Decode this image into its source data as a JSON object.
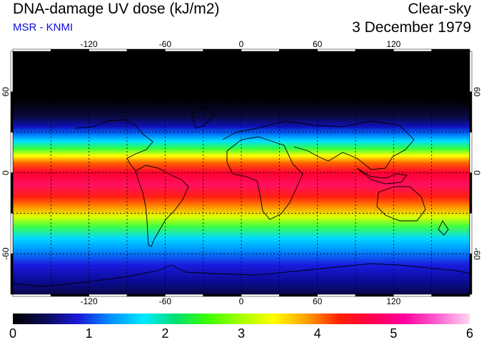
{
  "header": {
    "title": "DNA-damage UV dose (kJ/m2)",
    "subtitle": "MSR - KNMI",
    "condition": "Clear-sky",
    "date": "3 December 1979"
  },
  "map": {
    "lon_ticks": [
      "-120",
      "-60",
      "0",
      "60",
      "120"
    ],
    "lat_ticks_left": [
      "60",
      "0",
      "-60"
    ],
    "lat_ticks_right": [
      "60",
      "0",
      "-60"
    ],
    "lon_range": [
      -180,
      180
    ],
    "lat_range": [
      -90,
      90
    ],
    "grid_lons": [
      -150,
      -120,
      -90,
      -60,
      -30,
      0,
      30,
      60,
      90,
      120,
      150
    ],
    "grid_lats": [
      60,
      30,
      0,
      -30,
      -60
    ]
  },
  "colorbar": {
    "labels": [
      "0",
      "1",
      "2",
      "3",
      "4",
      "5",
      "6"
    ],
    "min": 0,
    "max": 6
  },
  "colors": {
    "scale": [
      "#000000",
      "#0a0a55",
      "#1a1ad8",
      "#0090ff",
      "#00e8ff",
      "#00e070",
      "#40ff00",
      "#a8ff00",
      "#ffff00",
      "#ffa000",
      "#ff2000",
      "#ff0050",
      "#ff00a0",
      "#ff60d0",
      "#ffd8f4"
    ],
    "title_blue": "#0b0bd6"
  }
}
